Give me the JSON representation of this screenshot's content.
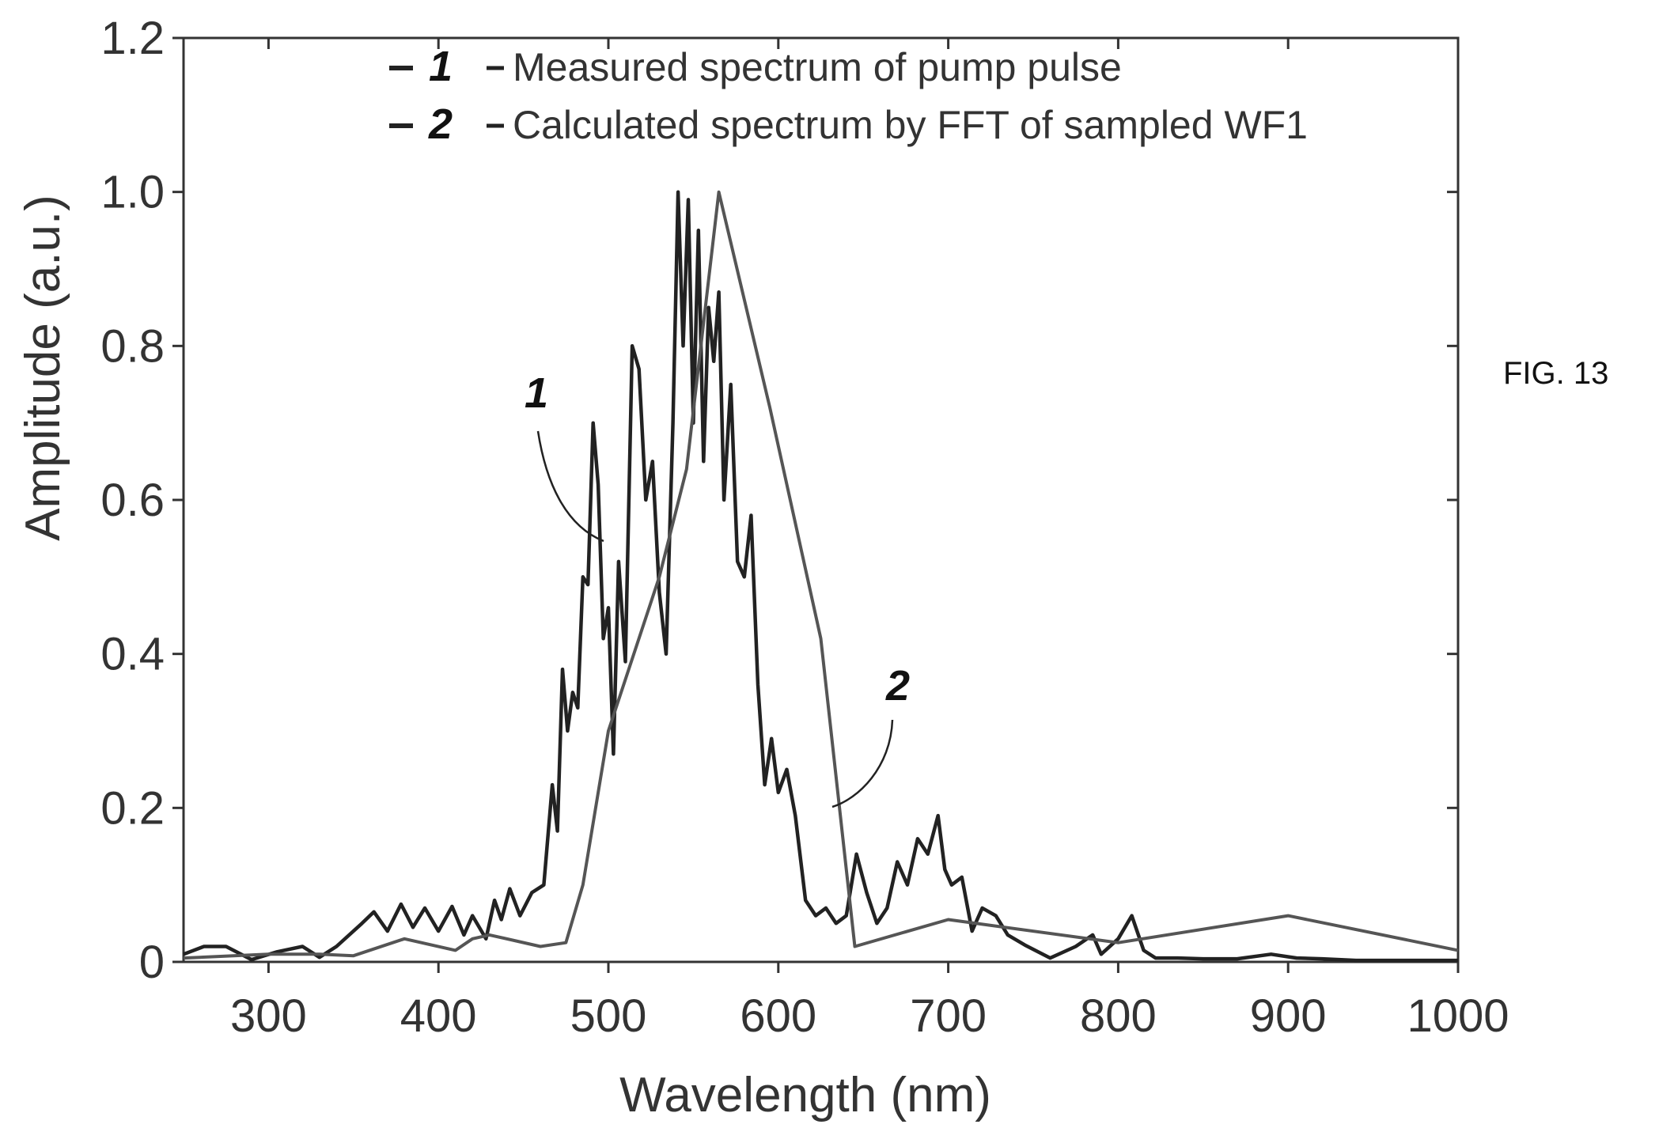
{
  "figure_label": "FIG. 13",
  "chart_data": {
    "type": "line",
    "title": "",
    "xlabel": "Wavelength (nm)",
    "ylabel": "Amplitude (a.u.)",
    "xlim": [
      250,
      1000
    ],
    "ylim": [
      0,
      1.2
    ],
    "x_ticks": [
      300,
      400,
      500,
      600,
      700,
      800,
      900,
      1000
    ],
    "x_tick_labels": [
      "300",
      "400",
      "500",
      "600",
      "700",
      "800",
      "900",
      "1000"
    ],
    "y_ticks": [
      0,
      0.2,
      0.4,
      0.6,
      0.8,
      1.0,
      1.2
    ],
    "y_tick_labels": [
      "0",
      "0.2",
      "0.4",
      "0.6",
      "0.8",
      "1.0",
      "1.2"
    ],
    "grid": false,
    "legend_position": "top-center",
    "legend": [
      {
        "marker": "1",
        "label": "Measured spectrum of pump pulse"
      },
      {
        "marker": "2",
        "label": "Calculated spectrum by FFT of sampled WF1"
      }
    ],
    "callouts": [
      {
        "text": "1",
        "series": 0,
        "x": 492,
        "y": 0.55
      },
      {
        "text": "2",
        "series": 1,
        "x": 628,
        "y": 0.23
      }
    ],
    "series": [
      {
        "marker": "1",
        "color": "#222222",
        "x": [
          250,
          262,
          275,
          290,
          305,
          320,
          330,
          340,
          355,
          362,
          370,
          378,
          385,
          392,
          400,
          408,
          415,
          420,
          428,
          433,
          437,
          442,
          448,
          455,
          462,
          467,
          470,
          473,
          476,
          479,
          482,
          485,
          488,
          491,
          494,
          497,
          500,
          503,
          506,
          510,
          514,
          518,
          522,
          526,
          530,
          534,
          538,
          541,
          544,
          547,
          550,
          553,
          556,
          559,
          562,
          565,
          568,
          572,
          576,
          580,
          584,
          588,
          592,
          596,
          600,
          605,
          610,
          616,
          622,
          628,
          634,
          640,
          646,
          652,
          658,
          664,
          670,
          676,
          682,
          688,
          694,
          698,
          702,
          708,
          714,
          720,
          728,
          735,
          745,
          760,
          775,
          785,
          790,
          800,
          808,
          815,
          822,
          835,
          850,
          870,
          890,
          905,
          920,
          940,
          960,
          980,
          1000
        ],
        "y": [
          0.01,
          0.02,
          0.02,
          0.003,
          0.013,
          0.02,
          0.006,
          0.02,
          0.05,
          0.065,
          0.04,
          0.075,
          0.045,
          0.07,
          0.04,
          0.072,
          0.035,
          0.06,
          0.03,
          0.08,
          0.055,
          0.095,
          0.06,
          0.09,
          0.1,
          0.23,
          0.17,
          0.38,
          0.3,
          0.35,
          0.33,
          0.5,
          0.49,
          0.7,
          0.62,
          0.42,
          0.46,
          0.27,
          0.52,
          0.39,
          0.8,
          0.77,
          0.6,
          0.65,
          0.48,
          0.4,
          0.7,
          1.0,
          0.8,
          0.99,
          0.7,
          0.95,
          0.65,
          0.85,
          0.78,
          0.87,
          0.6,
          0.75,
          0.52,
          0.5,
          0.58,
          0.36,
          0.23,
          0.29,
          0.22,
          0.25,
          0.19,
          0.08,
          0.06,
          0.07,
          0.05,
          0.06,
          0.14,
          0.09,
          0.05,
          0.07,
          0.13,
          0.1,
          0.16,
          0.14,
          0.19,
          0.12,
          0.1,
          0.11,
          0.04,
          0.07,
          0.06,
          0.035,
          0.022,
          0.005,
          0.02,
          0.035,
          0.01,
          0.03,
          0.06,
          0.015,
          0.005,
          0.005,
          0.004,
          0.004,
          0.01,
          0.005,
          0.004,
          0.002,
          0.002,
          0.002,
          0.002
        ]
      },
      {
        "marker": "2",
        "color": "#555555",
        "x": [
          250,
          300,
          330,
          350,
          380,
          410,
          420,
          430,
          460,
          475,
          485,
          500,
          530,
          546,
          565,
          595,
          625,
          645,
          700,
          800,
          900,
          1000
        ],
        "y": [
          0.005,
          0.01,
          0.01,
          0.008,
          0.03,
          0.015,
          0.03,
          0.035,
          0.02,
          0.025,
          0.1,
          0.3,
          0.5,
          0.64,
          1.0,
          0.72,
          0.42,
          0.02,
          0.055,
          0.025,
          0.06,
          0.015
        ]
      }
    ]
  }
}
